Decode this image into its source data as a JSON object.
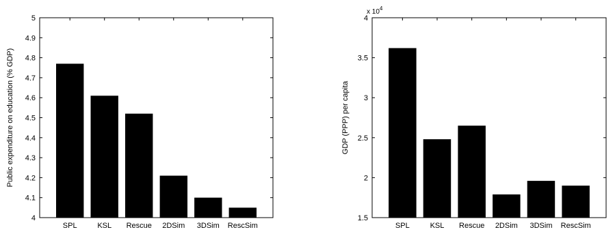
{
  "chart_data": [
    {
      "type": "bar",
      "title": "",
      "xlabel": "",
      "ylabel": "Public expenditure on education (% GDP)",
      "categories": [
        "SPL",
        "KSL",
        "Rescue",
        "2DSim",
        "3DSim",
        "RescSim"
      ],
      "values": [
        4.77,
        4.61,
        4.52,
        4.21,
        4.1,
        4.05
      ],
      "ylim": [
        4,
        5
      ],
      "yticks": [
        "4",
        "4.1",
        "4.2",
        "4.3",
        "4.4",
        "4.5",
        "4.6",
        "4.7",
        "4.8",
        "4.9",
        "5"
      ],
      "exponent_label": "",
      "bar_color": "#000000",
      "grid": false,
      "legend": "none"
    },
    {
      "type": "bar",
      "title": "",
      "xlabel": "",
      "ylabel": "GDP (PPP) per capita",
      "categories": [
        "SPL",
        "KSL",
        "Rescue",
        "2DSim",
        "3DSim",
        "RescSim"
      ],
      "values": [
        3.62,
        2.48,
        2.65,
        1.79,
        1.96,
        1.9
      ],
      "ylim": [
        1.5,
        4
      ],
      "yticks": [
        "1.5",
        "2",
        "2.5",
        "3",
        "3.5",
        "4"
      ],
      "exponent_label": "x 10",
      "exponent_power": "4",
      "bar_color": "#000000",
      "grid": false,
      "legend": "none"
    }
  ]
}
